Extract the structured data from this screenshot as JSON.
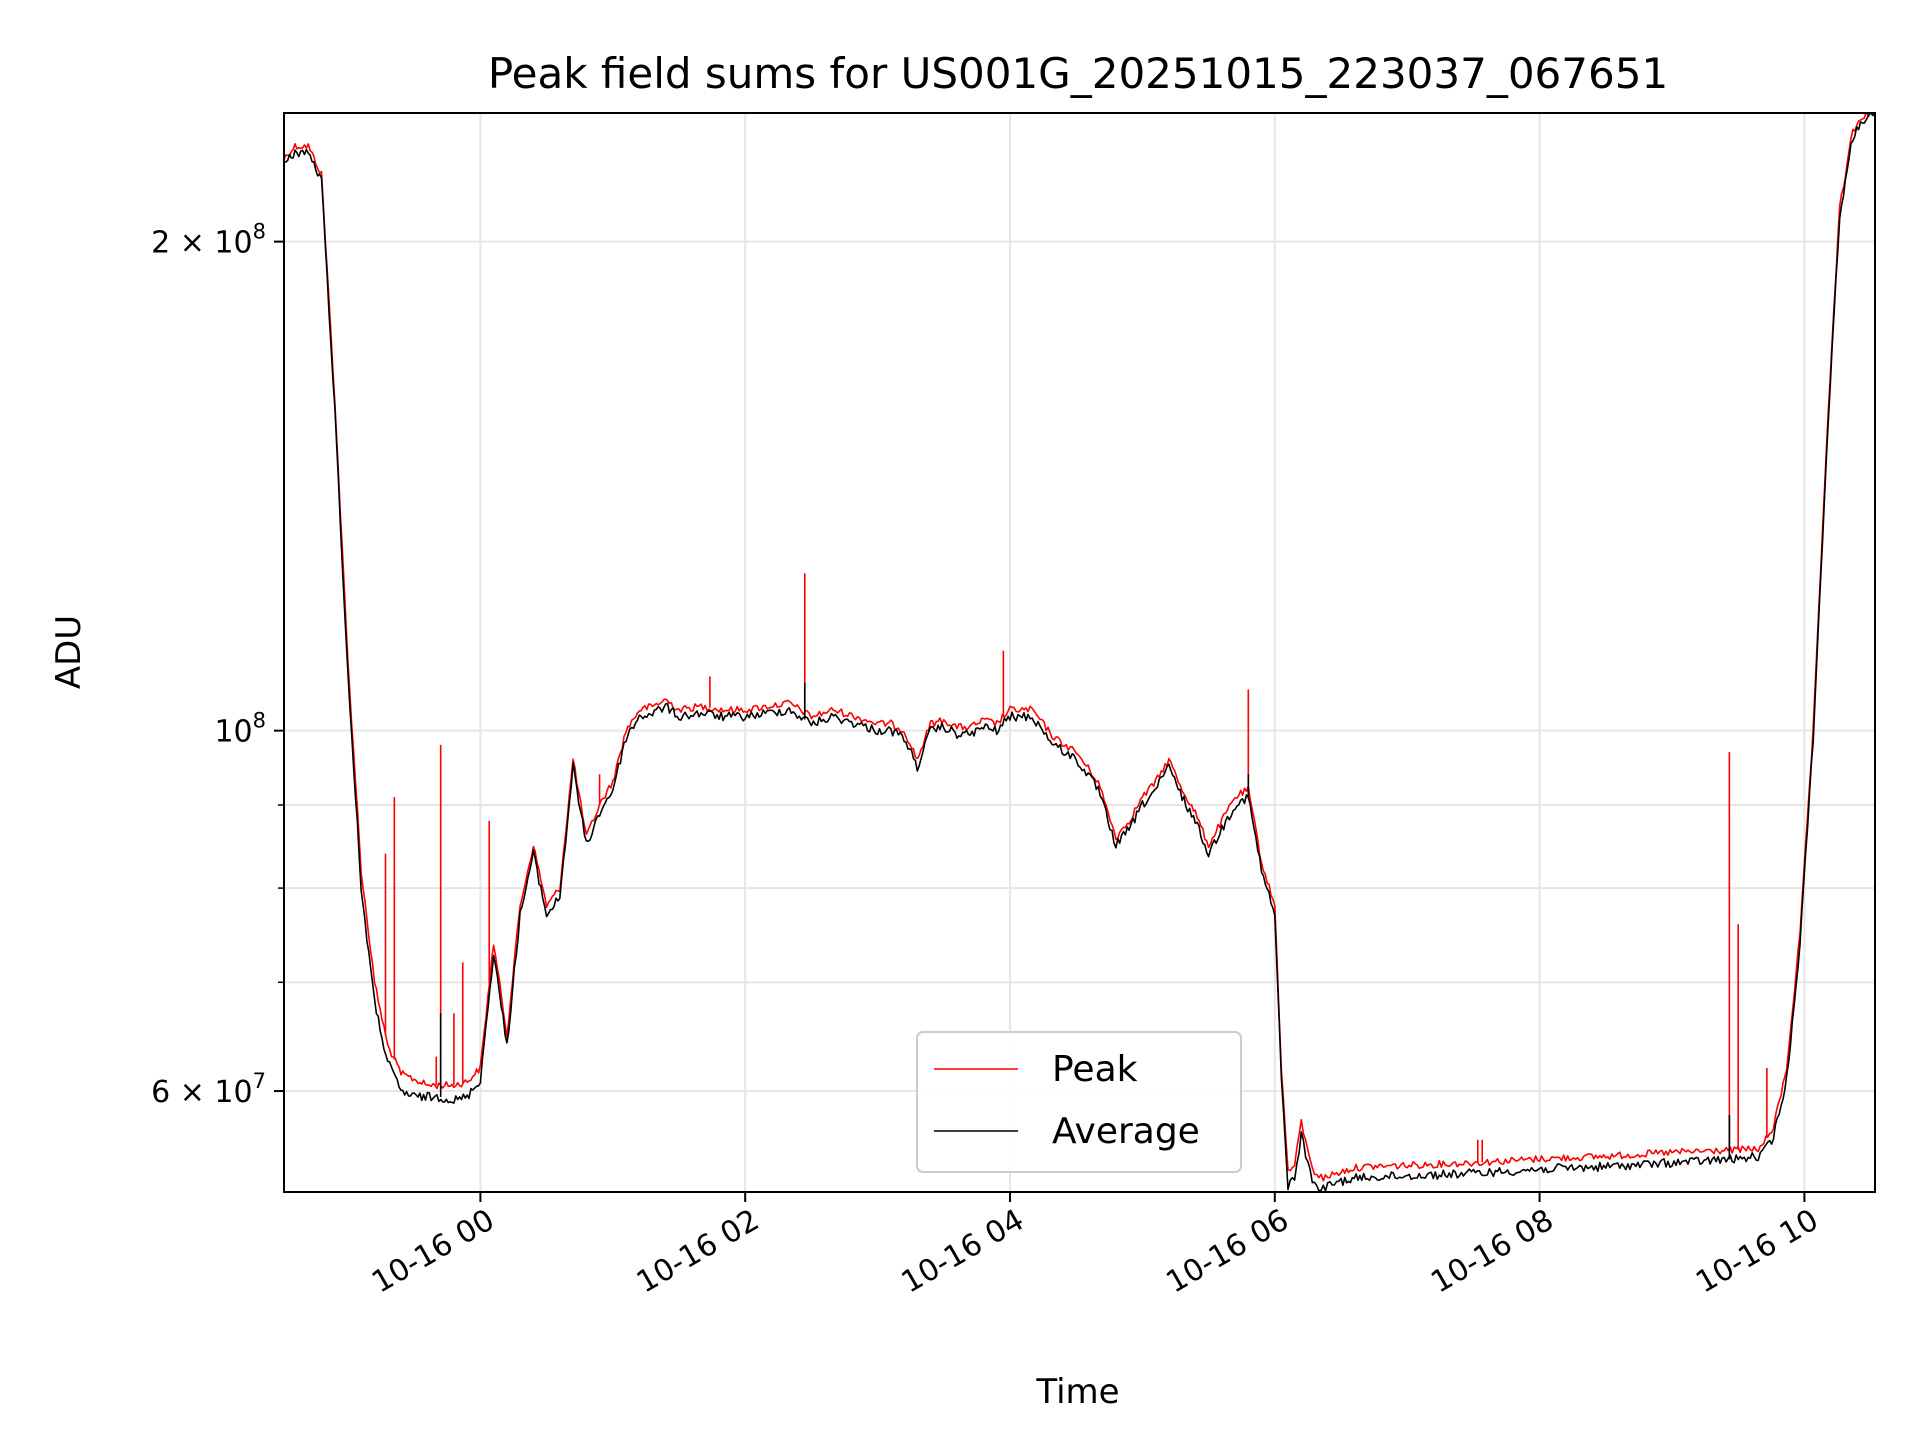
{
  "chart_data": {
    "type": "line",
    "title": "Peak field sums for US001G_20251015_223037_067651",
    "xlabel": "Time",
    "ylabel": "ADU",
    "y_scale": "log",
    "ylim": [
      52000000,
      240000000
    ],
    "xlim": [
      "2025-10-15 22:31",
      "2025-10-16 10:32"
    ],
    "x_ticks": [
      {
        "value": "2025-10-16 00:00",
        "label": "10-16 00"
      },
      {
        "value": "2025-10-16 02:00",
        "label": "10-16 02"
      },
      {
        "value": "2025-10-16 04:00",
        "label": "10-16 04"
      },
      {
        "value": "2025-10-16 06:00",
        "label": "10-16 06"
      },
      {
        "value": "2025-10-16 08:00",
        "label": "10-16 08"
      },
      {
        "value": "2025-10-16 10:00",
        "label": "10-16 10"
      }
    ],
    "y_ticks_major": [
      {
        "value": 60000000,
        "mantissa": "6",
        "exponent": "7"
      },
      {
        "value": 100000000,
        "mantissa": "",
        "exponent": "8"
      },
      {
        "value": 200000000,
        "mantissa": "2",
        "exponent": "8"
      }
    ],
    "y_ticks_minor": [
      70000000,
      80000000,
      90000000
    ],
    "grid": true,
    "legend_position": "lower-center",
    "series_colors": {
      "peak": "#ff0000",
      "average": "#000000"
    },
    "x": [
      "2025-10-15 22:31",
      "2025-10-15 22:36",
      "2025-10-15 22:42",
      "2025-10-15 22:48",
      "2025-10-15 22:54",
      "2025-10-15 23:00",
      "2025-10-15 23:06",
      "2025-10-15 23:12",
      "2025-10-15 23:18",
      "2025-10-15 23:24",
      "2025-10-15 23:30",
      "2025-10-15 23:36",
      "2025-10-15 23:42",
      "2025-10-15 23:48",
      "2025-10-15 23:54",
      "2025-10-16 00:00",
      "2025-10-16 00:06",
      "2025-10-16 00:12",
      "2025-10-16 00:18",
      "2025-10-16 00:24",
      "2025-10-16 00:30",
      "2025-10-16 00:36",
      "2025-10-16 00:42",
      "2025-10-16 00:48",
      "2025-10-16 00:54",
      "2025-10-16 01:00",
      "2025-10-16 01:06",
      "2025-10-16 01:12",
      "2025-10-16 01:18",
      "2025-10-16 01:24",
      "2025-10-16 01:30",
      "2025-10-16 01:40",
      "2025-10-16 01:50",
      "2025-10-16 02:00",
      "2025-10-16 02:10",
      "2025-10-16 02:20",
      "2025-10-16 02:30",
      "2025-10-16 02:40",
      "2025-10-16 02:50",
      "2025-10-16 03:00",
      "2025-10-16 03:06",
      "2025-10-16 03:12",
      "2025-10-16 03:18",
      "2025-10-16 03:24",
      "2025-10-16 03:30",
      "2025-10-16 03:36",
      "2025-10-16 03:42",
      "2025-10-16 03:48",
      "2025-10-16 03:54",
      "2025-10-16 04:00",
      "2025-10-16 04:10",
      "2025-10-16 04:20",
      "2025-10-16 04:30",
      "2025-10-16 04:40",
      "2025-10-16 04:48",
      "2025-10-16 04:54",
      "2025-10-16 05:00",
      "2025-10-16 05:06",
      "2025-10-16 05:12",
      "2025-10-16 05:18",
      "2025-10-16 05:24",
      "2025-10-16 05:30",
      "2025-10-16 05:36",
      "2025-10-16 05:42",
      "2025-10-16 05:48",
      "2025-10-16 05:54",
      "2025-10-16 06:00",
      "2025-10-16 06:03",
      "2025-10-16 06:06",
      "2025-10-16 06:09",
      "2025-10-16 06:12",
      "2025-10-16 06:15",
      "2025-10-16 06:18",
      "2025-10-16 06:22",
      "2025-10-16 06:26",
      "2025-10-16 06:30",
      "2025-10-16 06:36",
      "2025-10-16 06:42",
      "2025-10-16 07:00",
      "2025-10-16 07:30",
      "2025-10-16 08:00",
      "2025-10-16 08:30",
      "2025-10-16 09:00",
      "2025-10-16 09:30",
      "2025-10-16 09:40",
      "2025-10-16 09:46",
      "2025-10-16 09:52",
      "2025-10-16 09:58",
      "2025-10-16 10:04",
      "2025-10-16 10:10",
      "2025-10-16 10:16",
      "2025-10-16 10:22",
      "2025-10-16 10:28",
      "2025-10-16 10:32"
    ],
    "series": [
      {
        "name": "Peak",
        "values": [
          225000000,
          229000000,
          229000000,
          220000000,
          160000000,
          110000000,
          82000000,
          70000000,
          64000000,
          61500000,
          61000000,
          60500000,
          60500000,
          60500000,
          60800000,
          62000000,
          74000000,
          65000000,
          78000000,
          85000000,
          78000000,
          80000000,
          96000000,
          86000000,
          90000000,
          93000000,
          100000000,
          103000000,
          103500000,
          104500000,
          103000000,
          103500000,
          103000000,
          103000000,
          103500000,
          104000000,
          102000000,
          103000000,
          102000000,
          101000000,
          101000000,
          100000000,
          96000000,
          101000000,
          101500000,
          100500000,
          100500000,
          101500000,
          101000000,
          103000000,
          103000000,
          99000000,
          97000000,
          93000000,
          86000000,
          88000000,
          91000000,
          93000000,
          96000000,
          92000000,
          89000000,
          85000000,
          88000000,
          91000000,
          92000000,
          83000000,
          78000000,
          62000000,
          53500000,
          54000000,
          57500000,
          55000000,
          53500000,
          53000000,
          53300000,
          53500000,
          53800000,
          53900000,
          54000000,
          54200000,
          54500000,
          54700000,
          55000000,
          55200000,
          55300000,
          57000000,
          62000000,
          75000000,
          100000000,
          150000000,
          210000000,
          234000000,
          240000000,
          240000000
        ]
      },
      {
        "name": "Average",
        "values": [
          223000000,
          227000000,
          227000000,
          218000000,
          158000000,
          108000000,
          80000000,
          68000000,
          62500000,
          60000000,
          59500000,
          59500000,
          59500000,
          59200000,
          59500000,
          61000000,
          73000000,
          64000000,
          77000000,
          84000000,
          77000000,
          79000000,
          95000000,
          85000000,
          89000000,
          92000000,
          99000000,
          102000000,
          102500000,
          103500000,
          102000000,
          102500000,
          102000000,
          102000000,
          102500000,
          103000000,
          101000000,
          102000000,
          101000000,
          100000000,
          100000000,
          99000000,
          95000000,
          100000000,
          100500000,
          99500000,
          99500000,
          100500000,
          100000000,
          102000000,
          102000000,
          98000000,
          96000000,
          92000000,
          85000000,
          87000000,
          90000000,
          92000000,
          95000000,
          91000000,
          88000000,
          84000000,
          87000000,
          90000000,
          91000000,
          82000000,
          77000000,
          61000000,
          52500000,
          53000000,
          56500000,
          54000000,
          52500000,
          52200000,
          52600000,
          52800000,
          53000000,
          53100000,
          53200000,
          53400000,
          53700000,
          53900000,
          54200000,
          54500000,
          54700000,
          56200000,
          61000000,
          74000000,
          99000000,
          148000000,
          208000000,
          232000000,
          239000000,
          239000000
        ]
      }
    ],
    "spikes": {
      "Peak": [
        {
          "x": "2025-10-15 23:04",
          "y": 90000000
        },
        {
          "x": "2025-10-15 23:17",
          "y": 84000000
        },
        {
          "x": "2025-10-15 23:21",
          "y": 91000000
        },
        {
          "x": "2025-10-15 23:40",
          "y": 63000000
        },
        {
          "x": "2025-10-15 23:42",
          "y": 98000000
        },
        {
          "x": "2025-10-15 23:48",
          "y": 67000000
        },
        {
          "x": "2025-10-15 23:52",
          "y": 72000000
        },
        {
          "x": "2025-10-16 00:04",
          "y": 88000000
        },
        {
          "x": "2025-10-16 00:54",
          "y": 94000000
        },
        {
          "x": "2025-10-16 01:44",
          "y": 108000000
        },
        {
          "x": "2025-10-16 02:27",
          "y": 125000000
        },
        {
          "x": "2025-10-16 03:57",
          "y": 112000000
        },
        {
          "x": "2025-10-16 05:48",
          "y": 106000000
        },
        {
          "x": "2025-10-16 07:32",
          "y": 56000000
        },
        {
          "x": "2025-10-16 07:34",
          "y": 56000000
        },
        {
          "x": "2025-10-16 09:26",
          "y": 97000000
        },
        {
          "x": "2025-10-16 09:30",
          "y": 76000000
        },
        {
          "x": "2025-10-16 09:43",
          "y": 62000000
        }
      ],
      "Average": [
        {
          "x": "2025-10-15 23:42",
          "y": 67000000
        },
        {
          "x": "2025-10-16 02:27",
          "y": 107000000
        },
        {
          "x": "2025-10-16 05:48",
          "y": 94000000
        },
        {
          "x": "2025-10-16 09:26",
          "y": 58000000
        }
      ]
    }
  }
}
